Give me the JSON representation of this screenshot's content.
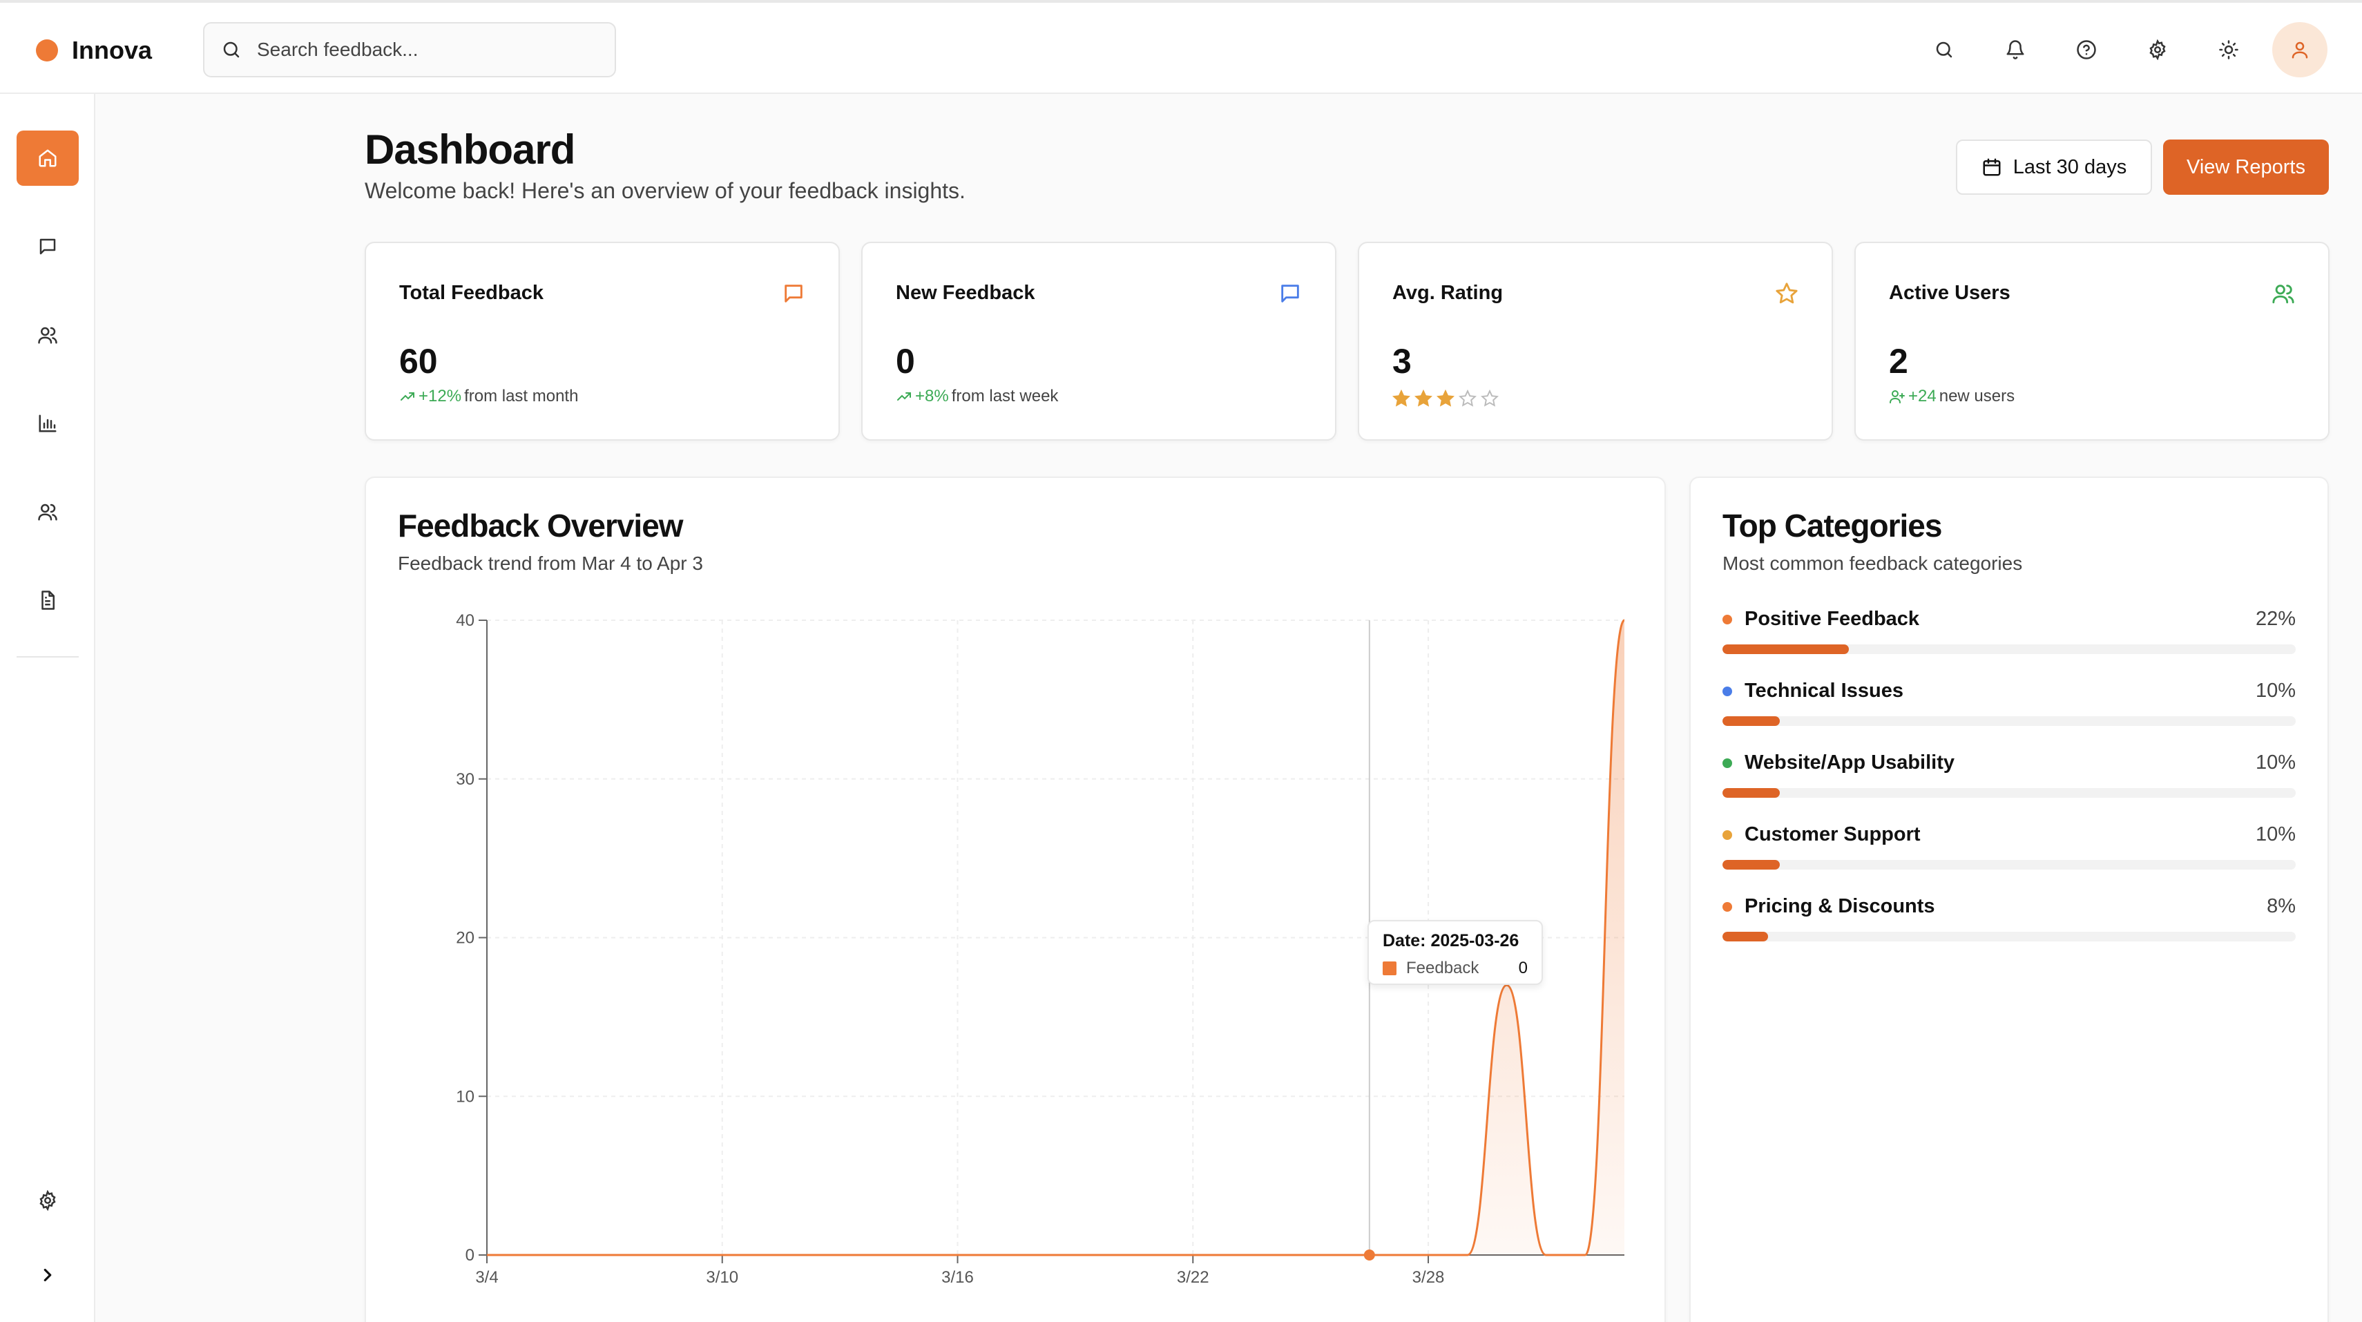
{
  "app": {
    "name": "Innova",
    "accent": "#ee7a36"
  },
  "search": {
    "placeholder": "Search feedback..."
  },
  "top_icons": [
    "search-icon",
    "bell-icon",
    "help-icon",
    "gear-icon",
    "sun-icon",
    "user-icon"
  ],
  "sidebar": {
    "items": [
      "home-icon",
      "message-icon",
      "users-icon",
      "bar-chart-icon",
      "users-icon",
      "document-icon"
    ],
    "bottom": [
      "gear-icon",
      "chevron-right-icon"
    ]
  },
  "header": {
    "title": "Dashboard",
    "subtitle": "Welcome back! Here's an overview of your feedback insights.",
    "date_range": "Last 30 days",
    "reports_label": "View Reports"
  },
  "stats": [
    {
      "label": "Total Feedback",
      "value": "60",
      "delta": "+12%",
      "delta_text": "from last month",
      "icon": "message-icon",
      "icon_color": "#ee7a36"
    },
    {
      "label": "New Feedback",
      "value": "0",
      "delta": "+8%",
      "delta_text": "from last week",
      "icon": "message-icon",
      "icon_color": "#4a7de8"
    },
    {
      "label": "Avg. Rating",
      "value": "3",
      "rating": 3,
      "rating_max": 5,
      "icon": "star-icon",
      "icon_color": "#e8a33a"
    },
    {
      "label": "Active Users",
      "value": "2",
      "delta": "+24",
      "delta_text": "new users",
      "icon": "users-icon",
      "icon_color": "#3caa55"
    }
  ],
  "overview": {
    "title": "Feedback Overview",
    "subtitle": "Feedback trend from Mar 4 to Apr 3"
  },
  "chart_data": {
    "type": "area",
    "x_ticks": [
      "3/4",
      "3/10",
      "3/16",
      "3/22",
      "3/28"
    ],
    "y_ticks": [
      0,
      10,
      20,
      30,
      40
    ],
    "ylim": [
      0,
      40
    ],
    "xlim_days": [
      0,
      29
    ],
    "series": [
      {
        "name": "Feedback",
        "color": "#ee7a36",
        "points": [
          [
            0,
            0
          ],
          [
            22,
            0
          ],
          [
            25,
            0
          ],
          [
            26,
            17
          ],
          [
            27,
            0
          ],
          [
            28,
            0
          ],
          [
            29,
            40
          ]
        ]
      }
    ],
    "tooltip": {
      "date": "Date: 2025-03-26",
      "series": "Feedback",
      "value": "0"
    },
    "grid": true
  },
  "categories": {
    "title": "Top Categories",
    "subtitle": "Most common feedback categories",
    "items": [
      {
        "label": "Positive Feedback",
        "pct": "22%",
        "value": 22,
        "dot": "#ee7a36"
      },
      {
        "label": "Technical Issues",
        "pct": "10%",
        "value": 10,
        "dot": "#4a7de8"
      },
      {
        "label": "Website/App Usability",
        "pct": "10%",
        "value": 10,
        "dot": "#3caa55"
      },
      {
        "label": "Customer Support",
        "pct": "10%",
        "value": 10,
        "dot": "#e8a33a"
      },
      {
        "label": "Pricing & Discounts",
        "pct": "8%",
        "value": 8,
        "dot": "#ee7a36"
      }
    ]
  }
}
